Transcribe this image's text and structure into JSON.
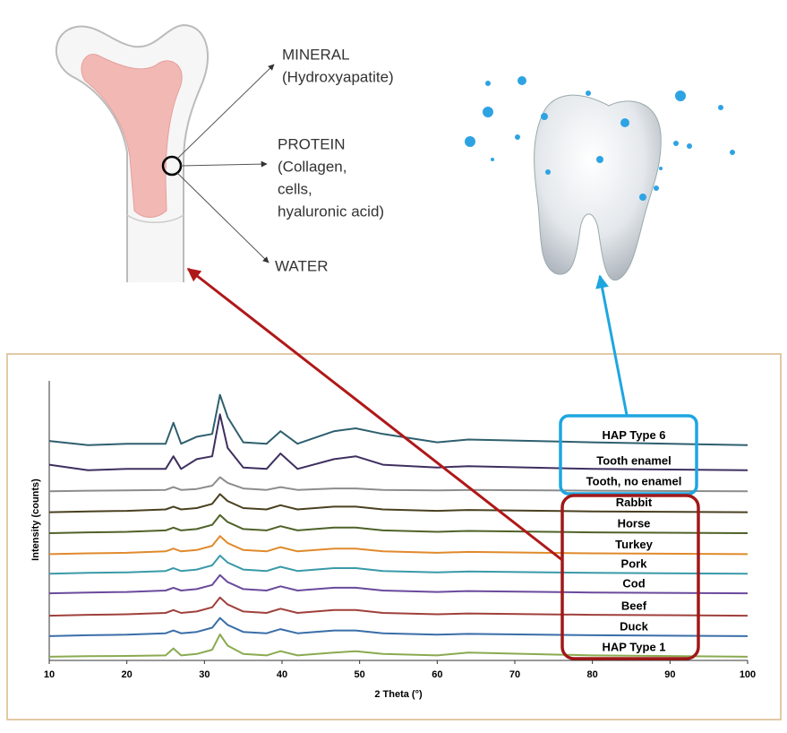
{
  "diagram": {
    "labels": [
      "MINERAL",
      "(Hydroxyapatite)",
      "PROTEIN",
      "(Collagen,",
      "cells,",
      "hyaluronic acid)",
      "WATER"
    ]
  },
  "chart_data": {
    "type": "line",
    "x_label": "2 Theta  (°)",
    "y_label": "Intensity  (counts)",
    "xlim": [
      10,
      100
    ],
    "xticks": [
      10,
      20,
      30,
      40,
      50,
      60,
      70,
      80,
      90,
      100
    ],
    "ylim": [
      0,
      100
    ],
    "x": [
      10,
      15,
      20,
      25,
      26,
      27,
      29,
      31,
      32,
      33,
      35,
      38,
      39.8,
      42,
      46.7,
      49.5,
      53,
      60,
      64,
      80,
      100
    ],
    "series": [
      {
        "name": "HAP Type 1",
        "color": "#8aaa50",
        "values": [
          1.3,
          1.5,
          1.6,
          1.8,
          4.3,
          1.8,
          2.3,
          3.8,
          9.3,
          5.3,
          2.3,
          1.8,
          3.3,
          1.8,
          2.8,
          3.3,
          2.3,
          1.8,
          2.8,
          1.8,
          1.3
        ]
      },
      {
        "name": "Duck",
        "color": "#3a6ea8",
        "values": [
          8.7,
          9,
          9.2,
          9.7,
          10.7,
          9.7,
          10.2,
          11.7,
          15.2,
          12.7,
          10.2,
          9.7,
          11.2,
          9.7,
          10.7,
          10.7,
          9.7,
          9.2,
          9.5,
          9,
          8.7
        ]
      },
      {
        "name": "Beef",
        "color": "#a0403c",
        "values": [
          16,
          16.3,
          16.5,
          17,
          18,
          17,
          17.5,
          19,
          22.5,
          20,
          17.5,
          17,
          18.5,
          17,
          18,
          18,
          17,
          16.5,
          16.8,
          16.3,
          16
        ]
      },
      {
        "name": "Cod",
        "color": "#6a4a9c",
        "values": [
          24,
          24.3,
          24.5,
          25,
          26,
          25,
          25.5,
          27,
          30.5,
          28,
          25.5,
          25,
          26.5,
          25,
          26,
          26,
          25,
          24.5,
          24.8,
          24.3,
          24
        ]
      },
      {
        "name": "Pork",
        "color": "#3a9aa8",
        "values": [
          31,
          31.3,
          31.5,
          32,
          33,
          32,
          32.5,
          34,
          37.5,
          35,
          32.5,
          32,
          33.5,
          32,
          33,
          33,
          32,
          31.5,
          31.8,
          31.3,
          31
        ]
      },
      {
        "name": "Turkey",
        "color": "#e08a2c",
        "values": [
          38,
          38.3,
          38.5,
          39,
          40,
          39,
          39.5,
          41,
          44.5,
          42,
          39.5,
          39,
          40.5,
          39,
          40,
          40,
          39,
          38.5,
          38.8,
          38.3,
          38
        ]
      },
      {
        "name": "Horse",
        "color": "#4f6228",
        "values": [
          45.5,
          45.8,
          46,
          46.5,
          47.5,
          46.5,
          47,
          48.5,
          52,
          49.5,
          47,
          46.5,
          48,
          46.5,
          47.5,
          47.5,
          46.5,
          46,
          46.3,
          45.8,
          45.5
        ]
      },
      {
        "name": "Rabbit",
        "color": "#4a4020",
        "values": [
          53,
          53.3,
          53.5,
          54,
          55,
          54,
          54.5,
          56,
          59.5,
          57,
          54.5,
          54,
          55.5,
          54,
          55,
          55,
          54,
          53.5,
          53.8,
          53.3,
          53
        ]
      },
      {
        "name": "Tooth, no enamel",
        "color": "#8c8c8c",
        "values": [
          60.5,
          60.7,
          60.8,
          61,
          62,
          61,
          61.3,
          62.5,
          65.5,
          63.5,
          61.5,
          61,
          62,
          61,
          61.5,
          61.5,
          61,
          60.8,
          61,
          60.7,
          60.5
        ]
      },
      {
        "name": "Tooth enamel",
        "color": "#3f2f5f",
        "values": [
          70,
          68,
          68.5,
          68.5,
          73,
          68.5,
          72,
          73,
          88,
          76,
          69,
          68.5,
          74,
          68.5,
          72,
          73,
          70,
          69,
          69.5,
          68.5,
          68
        ]
      },
      {
        "name": "HAP Type 6",
        "color": "#2e5f6e",
        "values": [
          78.5,
          77,
          77.5,
          77.5,
          85,
          77.5,
          80,
          81,
          95,
          87,
          78,
          77.5,
          82,
          77.5,
          82,
          83,
          81,
          78,
          79,
          78,
          77
        ]
      }
    ]
  }
}
